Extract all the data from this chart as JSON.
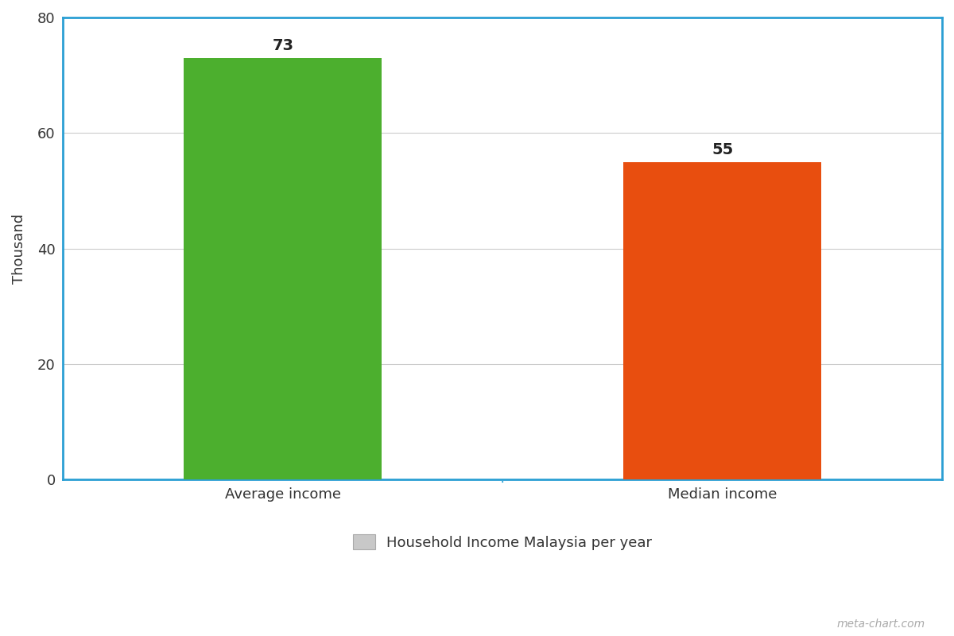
{
  "categories": [
    "Average income",
    "Median income"
  ],
  "values": [
    73,
    55
  ],
  "bar_colors": [
    "#4caf2e",
    "#e84e0f"
  ],
  "ylabel": "Thousand",
  "ylim": [
    0,
    80
  ],
  "yticks": [
    0,
    20,
    40,
    60,
    80
  ],
  "legend_label": "Household Income Malaysia per year",
  "legend_color": "#c8c8c8",
  "legend_edgecolor": "#aaaaaa",
  "border_color": "#2b9fd4",
  "grid_color": "#cccccc",
  "label_fontsize": 13,
  "value_fontsize": 14,
  "ylabel_fontsize": 13,
  "watermark": "meta-chart.com",
  "background_color": "#ffffff",
  "bar_positions": [
    1,
    3
  ],
  "bar_width": 0.9,
  "xlim": [
    0,
    4
  ],
  "xticks": [
    1,
    3
  ],
  "separator_x": 2.0
}
